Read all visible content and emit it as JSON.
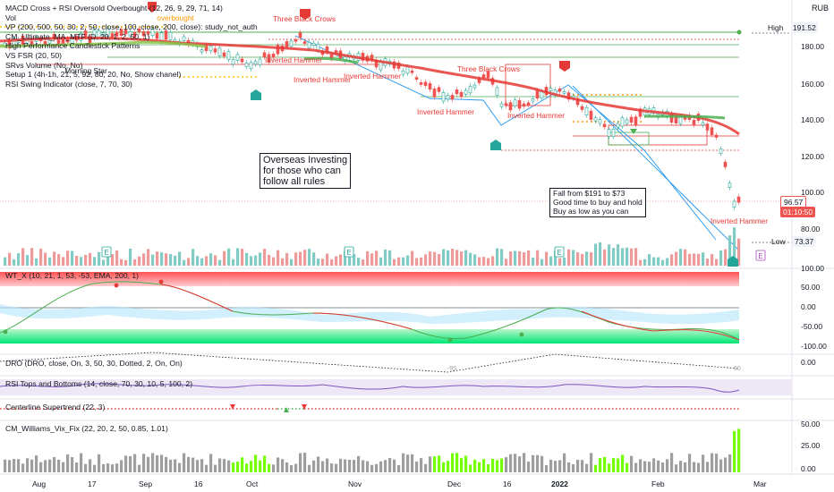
{
  "currency": "RUB",
  "indicators_top": [
    "MACD Cross + RSI Oversold Overbought (12, 26, 9, 29, 71, 14)",
    "Vol",
    "VP (200, 500, 50, 30, 2, 50, close, 100, close, 200, close): study_not_auth",
    "CM_Ultimate_MA_MTF (D, 20, 1, 2, 50, 1)",
    "High Performance Candlestick Patterns",
    "VS FSR (20, 50)",
    "SRvs Volume (No, No)",
    "Setup 1 (4h-1h, 21, 5, 92, 80, 20, No, Show chanel)",
    "RSI Swing Indicator (close, 7, 70, 30)"
  ],
  "price_axis": {
    "ticks": [
      "180.00",
      "160.00",
      "140.00",
      "120.00",
      "100.00",
      "80.00"
    ]
  },
  "high": {
    "label": "High",
    "value": "191.52"
  },
  "low": {
    "label": "Low",
    "value": "73.37"
  },
  "last_price": "96.57",
  "countdown": "01:10:50",
  "pattern_labels": [
    {
      "text": "Three Black Crows",
      "color": "red"
    },
    {
      "text": "Inverted Hammer",
      "color": "red"
    },
    {
      "text": "Inverted Hammer",
      "color": "red"
    },
    {
      "text": "Inverted Hammer",
      "color": "red"
    },
    {
      "text": "Three Black Crows",
      "color": "red"
    },
    {
      "text": "Inverted Hammer",
      "color": "red"
    },
    {
      "text": "Inverted Hammer",
      "color": "red"
    },
    {
      "text": "Inverted Hammer",
      "color": "red"
    },
    {
      "text": "overbought",
      "color": "orange"
    },
    {
      "text": "Morning Star",
      "color": "black"
    }
  ],
  "note_overseas": [
    "Overseas Investing",
    "for those who can",
    "follow all rules"
  ],
  "note_fall": [
    "Fall from $191 to $73",
    "Good time to buy and hold",
    "Buy as low as you can"
  ],
  "earnings_badge": "E",
  "wt": {
    "title": "WT_X (10, 21, 1, 53, -53, EMA, 200, 1)",
    "ticks": [
      "100.00",
      "50.00",
      "0.00",
      "-50.00",
      "-100.00"
    ]
  },
  "dro": {
    "title": "DRO (DRO, close, On, 3, 50, 30, Dotted, 2, On, On)",
    "ticks": [
      "0.00"
    ],
    "labels": [
      "-95",
      "60"
    ]
  },
  "rsi_tb": {
    "title": "RSI Tops and Bottoms (14, close, 70, 30, 10, 5, 100, 2)"
  },
  "centerline": {
    "title": "Centerline Supertrend (22, 3)"
  },
  "vix": {
    "title": "CM_Williams_Vix_Fix (22, 20, 2, 50, 0.85, 1.01)",
    "ticks": [
      "50.00",
      "25.00",
      "0.00"
    ]
  },
  "time_axis": [
    "Aug",
    "17",
    "Sep",
    "16",
    "Oct",
    "Nov",
    "Dec",
    "16",
    "2022",
    "Feb",
    "Mar"
  ],
  "colors": {
    "up": "#26a69a",
    "down": "#ef5350",
    "ma": "#e53935",
    "ma_up": "#4caf50",
    "wt_green": "#00e676",
    "wt_red": "#ff5252",
    "orange": "#ff9800",
    "blue": "#2196f3"
  }
}
